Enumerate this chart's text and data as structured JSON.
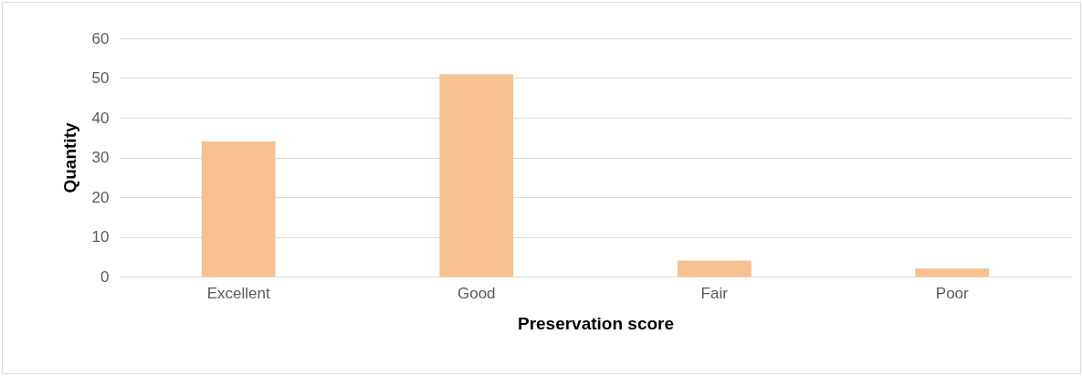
{
  "chart_data": {
    "type": "bar",
    "xlabel": "Preservation score",
    "ylabel": "Quantity",
    "categories": [
      "Excellent",
      "Good",
      "Fair",
      "Poor"
    ],
    "values": [
      34,
      51,
      4,
      2
    ],
    "color": "#f9c090",
    "ylim": [
      0,
      60
    ],
    "yticks": [
      0,
      10,
      20,
      30,
      40,
      50,
      60
    ],
    "grid": "y"
  }
}
